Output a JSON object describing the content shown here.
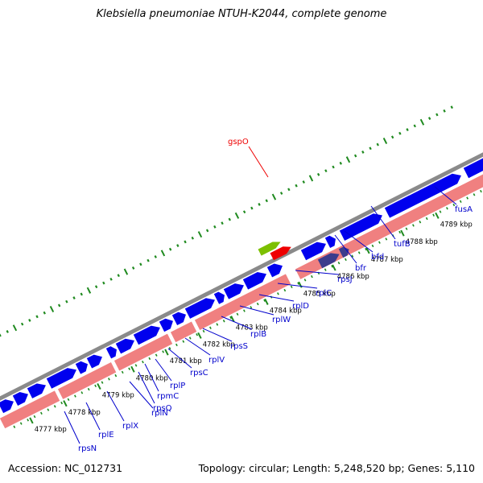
{
  "title": "Klebsiella pneumoniae NTUH-K2044, complete genome",
  "accession": "Accession: NC_012731",
  "summary": "Topology: circular; Length: 5,248,520 bp; Genes: 5,110",
  "colors": {
    "backbone": "#8a8a8a",
    "forward_gene": "#0000ee",
    "rrna_track": "#f08080",
    "operon_dark": "#3c3c8c",
    "gspO_red": "#ee0000",
    "gspO_green": "#7cc000",
    "tick_green": "#1f8a1f",
    "gene_label": "#0000cc",
    "gspO_label": "#ee0000"
  },
  "kbp_ticks": [
    "4777 kbp",
    "4778 kbp",
    "4779 kbp",
    "4780 kbp",
    "4781 kbp",
    "4782 kbp",
    "4783 kbp",
    "4784 kbp",
    "4785 kbp",
    "4786 kbp",
    "4787 kbp",
    "4788 kbp",
    "4789 kbp"
  ],
  "gene_labels": [
    "rpsN",
    "rplE",
    "rplX",
    "rplN",
    "rpsQ",
    "rpmC",
    "rplP",
    "rpsC",
    "rplV",
    "rpsS",
    "rplB",
    "rplW",
    "rplD",
    "rplC",
    "rpsJ",
    "bfr",
    "bfd",
    "tufB",
    "fusA"
  ],
  "highlight_label": "gspO"
}
